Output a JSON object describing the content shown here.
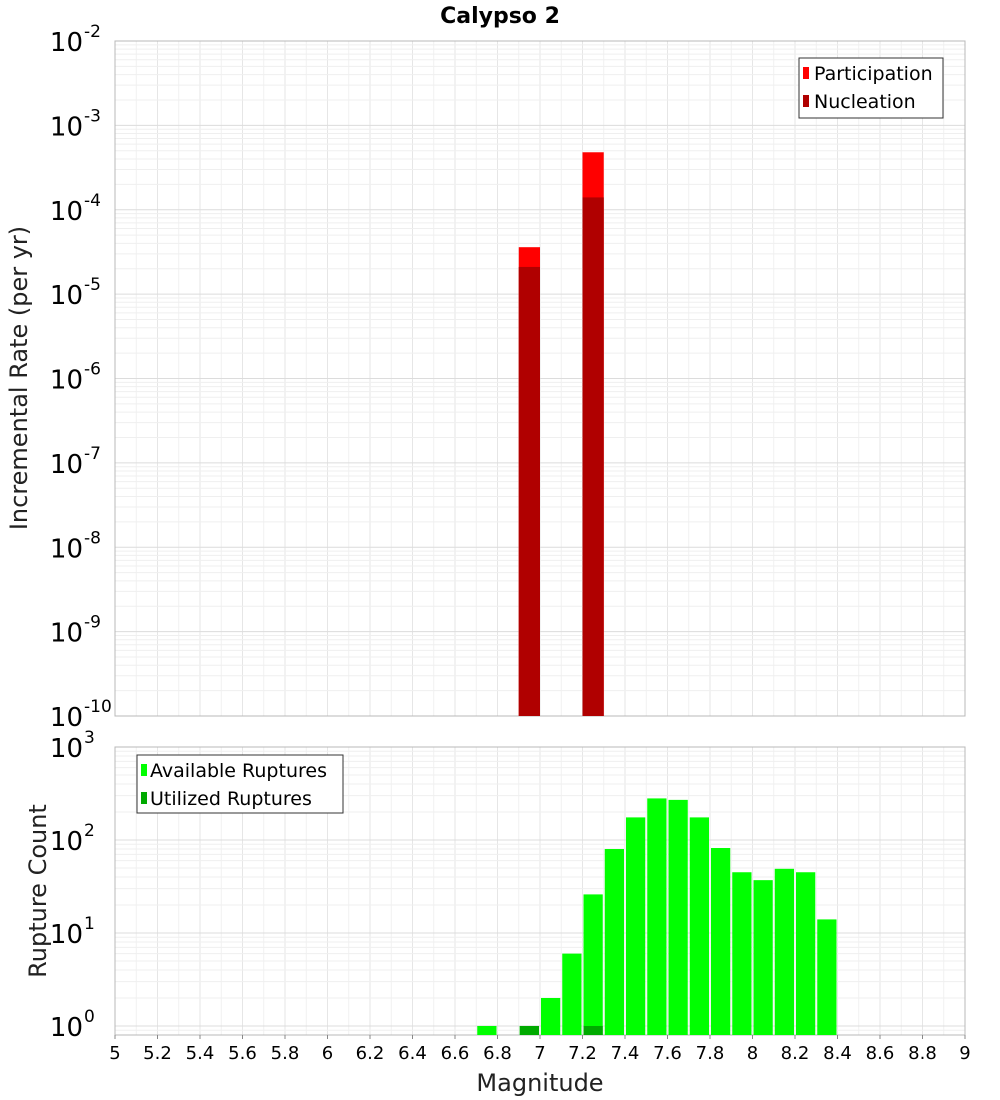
{
  "chart_data": [
    {
      "type": "bar",
      "title": "Calypso 2",
      "ylabel": "Incremental Rate (per yr)",
      "xlabel": "",
      "y_scale": "log",
      "ylim": [
        1e-10,
        0.01
      ],
      "xlim": [
        5,
        9
      ],
      "bar_width": 0.1,
      "grid": true,
      "legend": "top-right",
      "y_ticks": [
        {
          "base": "10",
          "exp": "-10",
          "value": 1e-10
        },
        {
          "base": "10",
          "exp": "-9",
          "value": 1e-09
        },
        {
          "base": "10",
          "exp": "-8",
          "value": 1e-08
        },
        {
          "base": "10",
          "exp": "-7",
          "value": 1e-07
        },
        {
          "base": "10",
          "exp": "-6",
          "value": 1e-06
        },
        {
          "base": "10",
          "exp": "-5",
          "value": 1e-05
        },
        {
          "base": "10",
          "exp": "-4",
          "value": 0.0001
        },
        {
          "base": "10",
          "exp": "-3",
          "value": 0.001
        },
        {
          "base": "10",
          "exp": "-2",
          "value": 0.01
        }
      ],
      "series": [
        {
          "name": "Participation",
          "color": "#ff0000",
          "points": [
            {
              "x": 6.95,
              "y": 3.6e-05
            },
            {
              "x": 7.25,
              "y": 0.00048
            }
          ]
        },
        {
          "name": "Nucleation",
          "color": "#b00000",
          "points": [
            {
              "x": 6.95,
              "y": 2.1e-05
            },
            {
              "x": 7.25,
              "y": 0.00014
            }
          ]
        }
      ]
    },
    {
      "type": "bar",
      "ylabel": "Rupture Count",
      "xlabel": "Magnitude",
      "y_scale": "log",
      "ylim": [
        0.8,
        1000
      ],
      "xlim": [
        5,
        9
      ],
      "bar_width": 0.1,
      "grid": true,
      "legend": "top-left",
      "y_ticks": [
        {
          "base": "10",
          "exp": "0",
          "value": 1
        },
        {
          "base": "10",
          "exp": "1",
          "value": 10
        },
        {
          "base": "10",
          "exp": "2",
          "value": 100
        },
        {
          "base": "10",
          "exp": "3",
          "value": 1000
        }
      ],
      "x_ticks": [
        "5",
        "5.2",
        "5.4",
        "5.6",
        "5.8",
        "6",
        "6.2",
        "6.4",
        "6.6",
        "6.8",
        "7",
        "7.2",
        "7.4",
        "7.6",
        "7.8",
        "8",
        "8.2",
        "8.4",
        "8.6",
        "8.8",
        "9"
      ],
      "series": [
        {
          "name": "Available Ruptures",
          "color": "#00ff00",
          "points": [
            {
              "x": 6.75,
              "y": 1
            },
            {
              "x": 6.95,
              "y": 1
            },
            {
              "x": 7.05,
              "y": 2
            },
            {
              "x": 7.15,
              "y": 6
            },
            {
              "x": 7.25,
              "y": 26
            },
            {
              "x": 7.35,
              "y": 80
            },
            {
              "x": 7.45,
              "y": 175
            },
            {
              "x": 7.55,
              "y": 280
            },
            {
              "x": 7.65,
              "y": 270
            },
            {
              "x": 7.75,
              "y": 175
            },
            {
              "x": 7.85,
              "y": 82
            },
            {
              "x": 7.95,
              "y": 45
            },
            {
              "x": 8.05,
              "y": 37
            },
            {
              "x": 8.15,
              "y": 49
            },
            {
              "x": 8.25,
              "y": 45
            },
            {
              "x": 8.35,
              "y": 14
            }
          ]
        },
        {
          "name": "Utilized Ruptures",
          "color": "#00aa00",
          "points": [
            {
              "x": 6.95,
              "y": 1
            },
            {
              "x": 7.25,
              "y": 1
            }
          ]
        }
      ]
    }
  ]
}
